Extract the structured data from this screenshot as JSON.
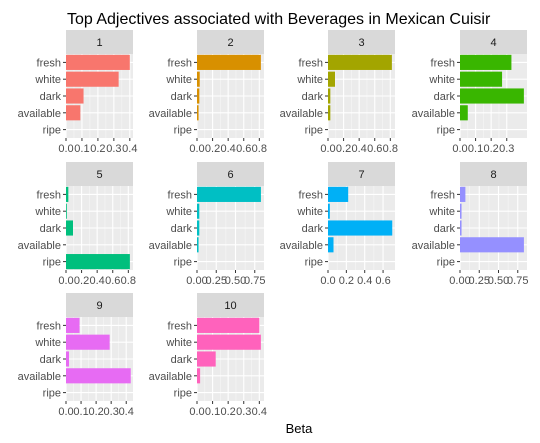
{
  "chart_data": {
    "type": "bar",
    "orientation": "horizontal",
    "facet": "wrap",
    "title": "Top Adjectives associated with Beverages in Mexican Cuisir",
    "xlabel": "Beta",
    "ylabel": "",
    "categories": [
      "fresh",
      "white",
      "dark",
      "available",
      "ripe"
    ],
    "grid": true,
    "panels": [
      {
        "label": "1",
        "color": "#F8766D",
        "xlim": [
          0,
          0.42
        ],
        "ticks": [
          0.0,
          0.1,
          0.2,
          0.3,
          0.4
        ],
        "tick_labels": [
          "0.0",
          "0.1",
          "0.2",
          "0.3",
          "0.4"
        ],
        "values": [
          0.4,
          0.33,
          0.11,
          0.09,
          0.0
        ]
      },
      {
        "label": "2",
        "color": "#D89000",
        "xlim": [
          0,
          0.86
        ],
        "ticks": [
          0.0,
          0.2,
          0.4,
          0.6,
          0.8
        ],
        "tick_labels": [
          "0.0",
          "0.2",
          "0.4",
          "0.6",
          "0.8"
        ],
        "values": [
          0.82,
          0.035,
          0.03,
          0.02,
          0.0
        ]
      },
      {
        "label": "3",
        "color": "#A3A500",
        "xlim": [
          0,
          0.86
        ],
        "ticks": [
          0.0,
          0.2,
          0.4,
          0.6,
          0.8
        ],
        "tick_labels": [
          "0.0",
          "0.2",
          "0.4",
          "0.6",
          "0.8"
        ],
        "values": [
          0.82,
          0.09,
          0.03,
          0.03,
          0.0
        ]
      },
      {
        "label": "4",
        "color": "#39B600",
        "xlim": [
          0,
          0.43
        ],
        "ticks": [
          0.0,
          0.1,
          0.2,
          0.3
        ],
        "tick_labels": [
          "0.0",
          "0.1",
          "0.2",
          "0.3"
        ],
        "values": [
          0.33,
          0.27,
          0.41,
          0.05,
          0.0
        ]
      },
      {
        "label": "5",
        "color": "#00BF7D",
        "xlim": [
          0,
          0.86
        ],
        "ticks": [
          0.0,
          0.2,
          0.4,
          0.6,
          0.8
        ],
        "tick_labels": [
          "0.0",
          "0.2",
          "0.4",
          "0.6",
          "0.8"
        ],
        "values": [
          0.03,
          0.01,
          0.09,
          0.0,
          0.82
        ]
      },
      {
        "label": "6",
        "color": "#00BFC4",
        "xlim": [
          0,
          0.87
        ],
        "ticks": [
          0.0,
          0.25,
          0.5,
          0.75
        ],
        "tick_labels": [
          "0.00",
          "0.25",
          "0.50",
          "0.75"
        ],
        "values": [
          0.83,
          0.03,
          0.03,
          0.02,
          0.0
        ]
      },
      {
        "label": "7",
        "color": "#00B0F6",
        "xlim": [
          0,
          0.73
        ],
        "ticks": [
          0.0,
          0.2,
          0.4,
          0.6
        ],
        "tick_labels": [
          "0.0",
          "0.2",
          "0.4",
          "0.6"
        ],
        "values": [
          0.22,
          0.02,
          0.7,
          0.06,
          0.0
        ]
      },
      {
        "label": "8",
        "color": "#9590FF",
        "xlim": [
          0,
          0.87
        ],
        "ticks": [
          0.0,
          0.25,
          0.5,
          0.75
        ],
        "tick_labels": [
          "0.00",
          "0.25",
          "0.50",
          "0.75"
        ],
        "values": [
          0.07,
          0.02,
          0.02,
          0.83,
          0.0
        ]
      },
      {
        "label": "9",
        "color": "#E76BF3",
        "xlim": [
          0,
          0.445
        ],
        "ticks": [
          0.0,
          0.1,
          0.2,
          0.3,
          0.4
        ],
        "tick_labels": [
          "0.0",
          "0.1",
          "0.2",
          "0.3",
          "0.4"
        ],
        "values": [
          0.09,
          0.29,
          0.02,
          0.43,
          0.0
        ]
      },
      {
        "label": "10",
        "color": "#FF62BC",
        "xlim": [
          0,
          0.43
        ],
        "ticks": [
          0.0,
          0.1,
          0.2,
          0.3,
          0.4
        ],
        "tick_labels": [
          "0.0",
          "0.1",
          "0.2",
          "0.3",
          "0.4"
        ],
        "values": [
          0.4,
          0.41,
          0.12,
          0.02,
          0.0
        ]
      }
    ]
  }
}
